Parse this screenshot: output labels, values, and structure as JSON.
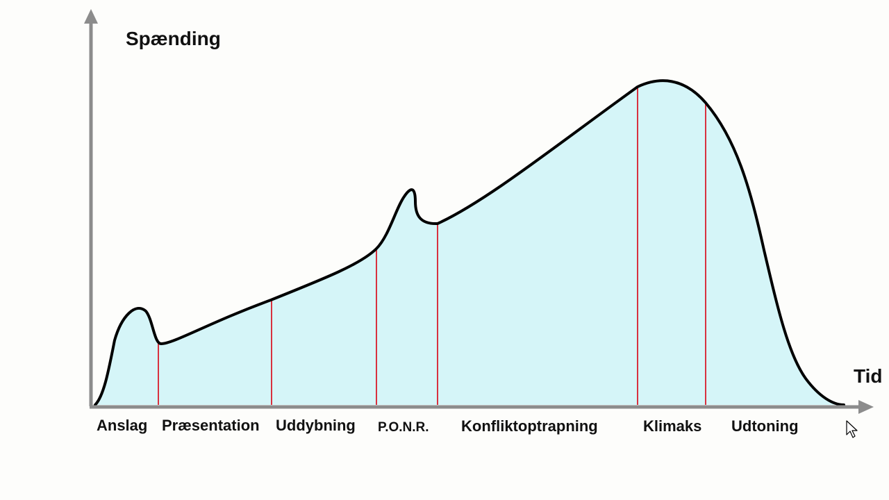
{
  "axes": {
    "y_label": "Spænding",
    "x_label": "Tid"
  },
  "phases": [
    {
      "id": "anslag",
      "label": "Anslag"
    },
    {
      "id": "praesentation",
      "label": "Præsentation"
    },
    {
      "id": "uddybning",
      "label": "Uddybning"
    },
    {
      "id": "ponr",
      "label": "P.O.N.R."
    },
    {
      "id": "konfliktoptrapning",
      "label": "Konfliktoptrapning"
    },
    {
      "id": "klimaks",
      "label": "Klimaks"
    },
    {
      "id": "udtoning",
      "label": "Udtoning"
    }
  ],
  "colors": {
    "area_fill": "#d5f5f8",
    "curve_stroke": "#000000",
    "divider": "#d8313f",
    "axis": "#8c8c8c",
    "text": "#111111"
  },
  "cursor": {
    "icon": "mouse-pointer-icon"
  }
}
